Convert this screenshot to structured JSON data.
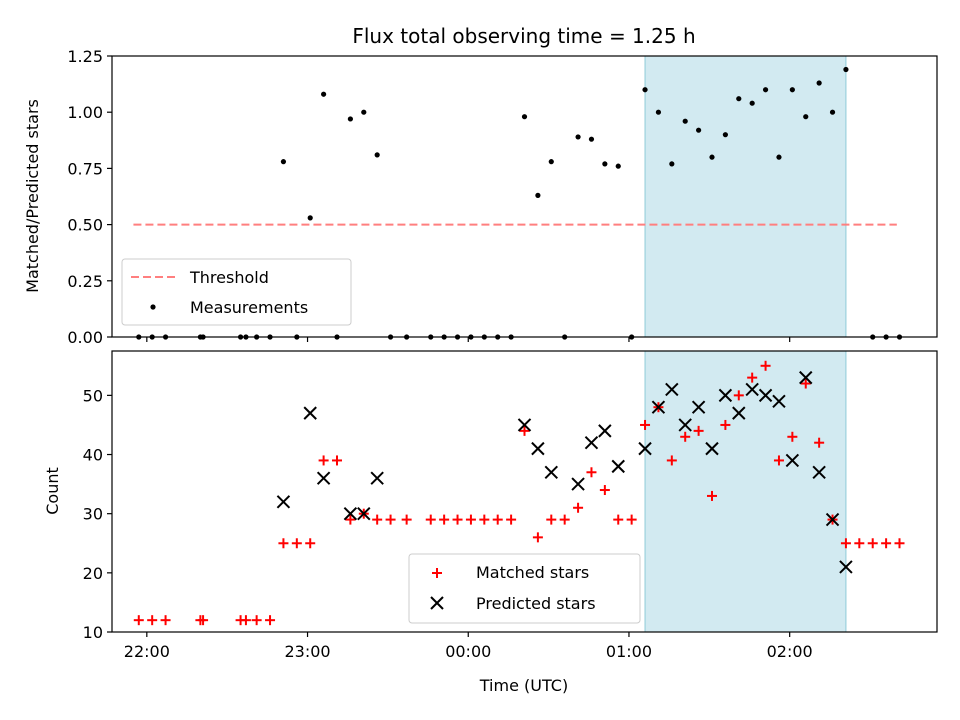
{
  "chart_data": [
    {
      "type": "scatter",
      "title": "Flux total observing time = 1.25 h",
      "xlabel": "",
      "ylabel": "Matched/Predicted stars",
      "ylim": [
        0,
        1.25
      ],
      "xlim": [
        "21:47",
        "02:55"
      ],
      "y_ticks": [
        "0.00",
        "0.25",
        "0.50",
        "0.75",
        "1.00",
        "1.25"
      ],
      "x_ticks": [
        "22:00",
        "23:00",
        "00:00",
        "01:00",
        "02:00"
      ],
      "x_tick_labels_shown": false,
      "highlight_band": {
        "x_start": "01:06",
        "x_end": "02:21",
        "color": "#add8e6"
      },
      "legend": {
        "location": "lower left",
        "entries": [
          "Threshold",
          "Measurements"
        ]
      },
      "series": [
        {
          "name": "Threshold",
          "style": "dashed-line",
          "color": "#ff7f7f",
          "x": [
            "21:55",
            "02:40"
          ],
          "y": [
            0.5,
            0.5
          ]
        },
        {
          "name": "Measurements",
          "style": "dot",
          "color": "#000000",
          "points": [
            [
              "21:57",
              0.0
            ],
            [
              "22:02",
              0.0
            ],
            [
              "22:07",
              0.0
            ],
            [
              "22:20",
              0.0
            ],
            [
              "22:21",
              0.0
            ],
            [
              "22:35",
              0.0
            ],
            [
              "22:37",
              0.0
            ],
            [
              "22:41",
              0.0
            ],
            [
              "22:46",
              0.0
            ],
            [
              "22:51",
              0.78
            ],
            [
              "22:56",
              0.0
            ],
            [
              "23:01",
              0.53
            ],
            [
              "23:06",
              1.08
            ],
            [
              "23:11",
              0.0
            ],
            [
              "23:16",
              0.97
            ],
            [
              "23:21",
              1.0
            ],
            [
              "23:26",
              0.81
            ],
            [
              "23:31",
              0.0
            ],
            [
              "23:37",
              0.0
            ],
            [
              "23:46",
              0.0
            ],
            [
              "23:51",
              0.0
            ],
            [
              "23:56",
              0.0
            ],
            [
              "00:01",
              0.0
            ],
            [
              "00:06",
              0.0
            ],
            [
              "00:11",
              0.0
            ],
            [
              "00:16",
              0.0
            ],
            [
              "00:21",
              0.98
            ],
            [
              "00:26",
              0.63
            ],
            [
              "00:31",
              0.78
            ],
            [
              "00:36",
              0.0
            ],
            [
              "00:41",
              0.89
            ],
            [
              "00:46",
              0.88
            ],
            [
              "00:51",
              0.77
            ],
            [
              "00:56",
              0.76
            ],
            [
              "01:01",
              0.0
            ],
            [
              "01:06",
              1.1
            ],
            [
              "01:11",
              1.0
            ],
            [
              "01:16",
              0.77
            ],
            [
              "01:21",
              0.96
            ],
            [
              "01:26",
              0.92
            ],
            [
              "01:31",
              0.8
            ],
            [
              "01:36",
              0.9
            ],
            [
              "01:41",
              1.06
            ],
            [
              "01:46",
              1.04
            ],
            [
              "01:51",
              1.1
            ],
            [
              "01:56",
              0.8
            ],
            [
              "02:01",
              1.1
            ],
            [
              "02:06",
              0.98
            ],
            [
              "02:11",
              1.13
            ],
            [
              "02:16",
              1.0
            ],
            [
              "02:21",
              1.19
            ],
            [
              "02:31",
              0.0
            ],
            [
              "02:36",
              0.0
            ],
            [
              "02:41",
              0.0
            ]
          ]
        }
      ]
    },
    {
      "type": "scatter",
      "title": "",
      "xlabel": "Time (UTC)",
      "ylabel": "Count",
      "ylim": [
        10,
        57.5
      ],
      "xlim": [
        "21:47",
        "02:55"
      ],
      "y_ticks": [
        "10",
        "20",
        "30",
        "40",
        "50"
      ],
      "x_ticks": [
        "22:00",
        "23:00",
        "00:00",
        "01:00",
        "02:00"
      ],
      "highlight_band": {
        "x_start": "01:06",
        "x_end": "02:21",
        "color": "#add8e6"
      },
      "legend": {
        "location": "lower center",
        "entries": [
          "Matched stars",
          "Predicted stars"
        ]
      },
      "series": [
        {
          "name": "Matched stars",
          "marker": "plus",
          "color": "#ff0000",
          "points": [
            [
              "21:57",
              12
            ],
            [
              "22:02",
              12
            ],
            [
              "22:07",
              12
            ],
            [
              "22:20",
              12
            ],
            [
              "22:21",
              12
            ],
            [
              "22:35",
              12
            ],
            [
              "22:37",
              12
            ],
            [
              "22:41",
              12
            ],
            [
              "22:46",
              12
            ],
            [
              "22:51",
              25
            ],
            [
              "22:56",
              25
            ],
            [
              "23:01",
              25
            ],
            [
              "23:06",
              39
            ],
            [
              "23:11",
              39
            ],
            [
              "23:16",
              29
            ],
            [
              "23:21",
              30
            ],
            [
              "23:26",
              29
            ],
            [
              "23:31",
              29
            ],
            [
              "23:37",
              29
            ],
            [
              "23:46",
              29
            ],
            [
              "23:51",
              29
            ],
            [
              "23:56",
              29
            ],
            [
              "00:01",
              29
            ],
            [
              "00:06",
              29
            ],
            [
              "00:11",
              29
            ],
            [
              "00:16",
              29
            ],
            [
              "00:21",
              44
            ],
            [
              "00:26",
              26
            ],
            [
              "00:31",
              29
            ],
            [
              "00:36",
              29
            ],
            [
              "00:41",
              31
            ],
            [
              "00:46",
              37
            ],
            [
              "00:51",
              34
            ],
            [
              "00:56",
              29
            ],
            [
              "01:01",
              29
            ],
            [
              "01:06",
              45
            ],
            [
              "01:11",
              48
            ],
            [
              "01:16",
              39
            ],
            [
              "01:21",
              43
            ],
            [
              "01:26",
              44
            ],
            [
              "01:31",
              33
            ],
            [
              "01:36",
              45
            ],
            [
              "01:41",
              50
            ],
            [
              "01:46",
              53
            ],
            [
              "01:51",
              55
            ],
            [
              "01:56",
              39
            ],
            [
              "02:01",
              43
            ],
            [
              "02:06",
              52
            ],
            [
              "02:11",
              42
            ],
            [
              "02:16",
              29
            ],
            [
              "02:21",
              25
            ],
            [
              "02:26",
              25
            ],
            [
              "02:31",
              25
            ],
            [
              "02:36",
              25
            ],
            [
              "02:41",
              25
            ]
          ]
        },
        {
          "name": "Predicted stars",
          "marker": "x",
          "color": "#000000",
          "points": [
            [
              "22:51",
              32
            ],
            [
              "23:01",
              47
            ],
            [
              "23:06",
              36
            ],
            [
              "23:16",
              30
            ],
            [
              "23:21",
              30
            ],
            [
              "23:26",
              36
            ],
            [
              "00:21",
              45
            ],
            [
              "00:26",
              41
            ],
            [
              "00:31",
              37
            ],
            [
              "00:41",
              35
            ],
            [
              "00:46",
              42
            ],
            [
              "00:51",
              44
            ],
            [
              "00:56",
              38
            ],
            [
              "01:06",
              41
            ],
            [
              "01:11",
              48
            ],
            [
              "01:16",
              51
            ],
            [
              "01:21",
              45
            ],
            [
              "01:26",
              48
            ],
            [
              "01:31",
              41
            ],
            [
              "01:36",
              50
            ],
            [
              "01:41",
              47
            ],
            [
              "01:46",
              51
            ],
            [
              "01:51",
              50
            ],
            [
              "01:56",
              49
            ],
            [
              "02:01",
              39
            ],
            [
              "02:06",
              53
            ],
            [
              "02:11",
              37
            ],
            [
              "02:16",
              29
            ],
            [
              "02:21",
              21
            ]
          ]
        }
      ]
    }
  ]
}
